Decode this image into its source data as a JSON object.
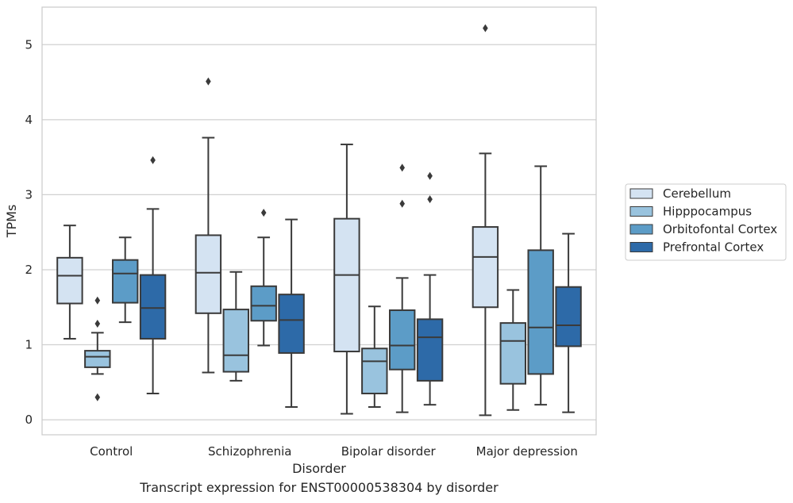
{
  "caption": "Transcript expression for ENST00000538304 by disorder",
  "chart_data": {
    "type": "boxplot",
    "xlabel": "Disorder",
    "ylabel": "TPMs",
    "ylim": [
      -0.2,
      5.5
    ],
    "yticks": [
      0,
      1,
      2,
      3,
      4,
      5
    ],
    "grid": "horizontal",
    "legend_position": "right",
    "categories": [
      "Control",
      "Schizophrenia",
      "Bipolar disorder",
      "Major depression"
    ],
    "series": [
      {
        "name": "Cerebellum",
        "color": "#d4e3f2",
        "boxes": [
          {
            "whislo": 1.08,
            "q1": 1.55,
            "med": 1.92,
            "q3": 2.16,
            "whishi": 2.59,
            "fliers": []
          },
          {
            "whislo": 0.63,
            "q1": 1.42,
            "med": 1.96,
            "q3": 2.46,
            "whishi": 3.76,
            "fliers": [
              4.51
            ]
          },
          {
            "whislo": 0.08,
            "q1": 0.91,
            "med": 1.93,
            "q3": 2.68,
            "whishi": 3.67,
            "fliers": []
          },
          {
            "whislo": 0.06,
            "q1": 1.5,
            "med": 2.17,
            "q3": 2.57,
            "whishi": 3.55,
            "fliers": [
              5.22
            ]
          }
        ]
      },
      {
        "name": "Hipppocampus",
        "color": "#99c3de",
        "boxes": [
          {
            "whislo": 0.61,
            "q1": 0.7,
            "med": 0.84,
            "q3": 0.92,
            "whishi": 1.16,
            "fliers": [
              1.59,
              1.28,
              0.3
            ]
          },
          {
            "whislo": 0.52,
            "q1": 0.64,
            "med": 0.86,
            "q3": 1.47,
            "whishi": 1.97,
            "fliers": []
          },
          {
            "whislo": 0.17,
            "q1": 0.35,
            "med": 0.78,
            "q3": 0.95,
            "whishi": 1.51,
            "fliers": []
          },
          {
            "whislo": 0.13,
            "q1": 0.48,
            "med": 1.05,
            "q3": 1.29,
            "whishi": 1.73,
            "fliers": []
          }
        ]
      },
      {
        "name": "Orbitofontal Cortex",
        "color": "#5c9cc7",
        "boxes": [
          {
            "whislo": 1.3,
            "q1": 1.56,
            "med": 1.95,
            "q3": 2.13,
            "whishi": 2.43,
            "fliers": []
          },
          {
            "whislo": 0.99,
            "q1": 1.32,
            "med": 1.52,
            "q3": 1.78,
            "whishi": 2.43,
            "fliers": [
              2.76
            ]
          },
          {
            "whislo": 0.1,
            "q1": 0.67,
            "med": 0.99,
            "q3": 1.46,
            "whishi": 1.89,
            "fliers": [
              3.36,
              2.88
            ]
          },
          {
            "whislo": 0.2,
            "q1": 0.61,
            "med": 1.23,
            "q3": 2.26,
            "whishi": 3.38,
            "fliers": []
          }
        ]
      },
      {
        "name": "Prefrontal Cortex",
        "color": "#2d6aa8",
        "boxes": [
          {
            "whislo": 0.35,
            "q1": 1.08,
            "med": 1.49,
            "q3": 1.93,
            "whishi": 2.81,
            "fliers": [
              3.46
            ]
          },
          {
            "whislo": 0.17,
            "q1": 0.89,
            "med": 1.33,
            "q3": 1.67,
            "whishi": 2.67,
            "fliers": []
          },
          {
            "whislo": 0.2,
            "q1": 0.52,
            "med": 1.1,
            "q3": 1.34,
            "whishi": 1.93,
            "fliers": [
              3.25,
              2.94
            ]
          },
          {
            "whislo": 0.1,
            "q1": 0.98,
            "med": 1.26,
            "q3": 1.77,
            "whishi": 2.48,
            "fliers": []
          }
        ]
      }
    ]
  }
}
